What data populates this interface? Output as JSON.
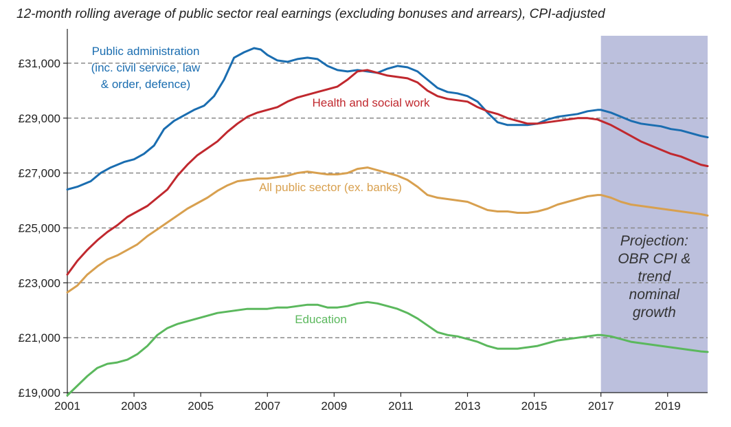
{
  "chart_data": {
    "type": "line",
    "title": "12-month rolling average of public sector real earnings (excluding bonuses and arrears), CPI-adjusted",
    "xlabel": "",
    "ylabel": "",
    "xlim": [
      2001,
      2020.2
    ],
    "ylim": [
      19000,
      32000
    ],
    "x_ticks": [
      2001,
      2003,
      2005,
      2007,
      2009,
      2011,
      2013,
      2015,
      2017,
      2019
    ],
    "x_tick_labels": [
      "2001",
      "2003",
      "2005",
      "2007",
      "2009",
      "2011",
      "2013",
      "2015",
      "2017",
      "2019"
    ],
    "y_ticks": [
      19000,
      21000,
      23000,
      25000,
      27000,
      29000,
      31000
    ],
    "y_tick_labels": [
      "£19,000",
      "£21,000",
      "£23,000",
      "£25,000",
      "£27,000",
      "£29,000",
      "£31,000"
    ],
    "grid": "dashed horizontal",
    "projection": {
      "from": 2017,
      "to": 2020.2,
      "label_lines": [
        "Projection:",
        "OBR CPI &",
        "trend",
        "nominal",
        "growth"
      ],
      "color": "#bcc0dd"
    },
    "series": [
      {
        "name": "Public administration (inc. civil service, law & order, defence)",
        "label_lines": [
          "Public administration",
          "(inc. civil service, law",
          "& order, defence)"
        ],
        "color": "#1a6db0",
        "x": [
          2001,
          2001.3,
          2001.7,
          2002,
          2002.3,
          2002.7,
          2003,
          2003.3,
          2003.6,
          2003.9,
          2004.2,
          2004.5,
          2004.8,
          2005.1,
          2005.4,
          2005.7,
          2006,
          2006.3,
          2006.6,
          2006.8,
          2007,
          2007.3,
          2007.6,
          2007.9,
          2008.2,
          2008.5,
          2008.8,
          2009.1,
          2009.4,
          2009.7,
          2010,
          2010.3,
          2010.6,
          2010.9,
          2011.2,
          2011.5,
          2011.8,
          2012.1,
          2012.4,
          2012.7,
          2013,
          2013.3,
          2013.6,
          2013.9,
          2014.2,
          2014.5,
          2014.8,
          2015.1,
          2015.4,
          2015.7,
          2016,
          2016.3,
          2016.6,
          2016.9,
          2017,
          2017.3,
          2017.6,
          2017.9,
          2018.2,
          2018.5,
          2018.8,
          2019.1,
          2019.4,
          2019.7,
          2020,
          2020.2
        ],
        "values": [
          26400,
          26500,
          26700,
          27000,
          27200,
          27400,
          27500,
          27700,
          28000,
          28600,
          28900,
          29100,
          29300,
          29450,
          29800,
          30400,
          31200,
          31400,
          31550,
          31500,
          31300,
          31100,
          31050,
          31150,
          31200,
          31150,
          30900,
          30750,
          30700,
          30750,
          30700,
          30650,
          30800,
          30900,
          30850,
          30700,
          30400,
          30100,
          29950,
          29900,
          29800,
          29600,
          29200,
          28850,
          28750,
          28750,
          28750,
          28800,
          28950,
          29050,
          29100,
          29150,
          29250,
          29300,
          29300,
          29200,
          29050,
          28900,
          28800,
          28750,
          28700,
          28600,
          28550,
          28450,
          28350,
          28300
        ]
      },
      {
        "name": "Health and social work",
        "label_lines": [
          "Health and social work"
        ],
        "color": "#c0282e",
        "x": [
          2001,
          2001.3,
          2001.6,
          2001.9,
          2002.2,
          2002.5,
          2002.8,
          2003.1,
          2003.4,
          2003.7,
          2004,
          2004.3,
          2004.6,
          2004.9,
          2005.2,
          2005.5,
          2005.8,
          2006.1,
          2006.4,
          2006.7,
          2007,
          2007.3,
          2007.6,
          2007.9,
          2008.2,
          2008.5,
          2008.8,
          2009.1,
          2009.4,
          2009.7,
          2010,
          2010.3,
          2010.6,
          2010.9,
          2011.2,
          2011.5,
          2011.8,
          2012.1,
          2012.4,
          2012.7,
          2013,
          2013.3,
          2013.6,
          2013.9,
          2014.2,
          2014.5,
          2014.8,
          2015.1,
          2015.4,
          2015.7,
          2016,
          2016.3,
          2016.6,
          2016.9,
          2017,
          2017.3,
          2017.6,
          2017.9,
          2018.2,
          2018.5,
          2018.8,
          2019.1,
          2019.4,
          2019.7,
          2020,
          2020.2
        ],
        "values": [
          23300,
          23800,
          24200,
          24550,
          24850,
          25100,
          25400,
          25600,
          25800,
          26100,
          26400,
          26900,
          27300,
          27650,
          27900,
          28150,
          28500,
          28800,
          29050,
          29200,
          29300,
          29400,
          29600,
          29750,
          29850,
          29950,
          30050,
          30150,
          30400,
          30700,
          30750,
          30650,
          30550,
          30500,
          30450,
          30300,
          30000,
          29800,
          29700,
          29650,
          29600,
          29400,
          29250,
          29150,
          29000,
          28900,
          28800,
          28800,
          28850,
          28900,
          28950,
          29000,
          29000,
          28950,
          28900,
          28750,
          28550,
          28350,
          28150,
          28000,
          27850,
          27700,
          27600,
          27450,
          27300,
          27250
        ]
      },
      {
        "name": "All public sector (ex. banks)",
        "label_lines": [
          "All public sector (ex. banks)"
        ],
        "color": "#d8a04f",
        "x": [
          2001,
          2001.3,
          2001.6,
          2001.9,
          2002.2,
          2002.5,
          2002.8,
          2003.1,
          2003.4,
          2003.7,
          2004,
          2004.3,
          2004.6,
          2004.9,
          2005.2,
          2005.5,
          2005.8,
          2006.1,
          2006.4,
          2006.7,
          2007,
          2007.3,
          2007.6,
          2007.9,
          2008.2,
          2008.5,
          2008.8,
          2009.1,
          2009.4,
          2009.7,
          2010,
          2010.3,
          2010.6,
          2010.9,
          2011.2,
          2011.5,
          2011.8,
          2012.1,
          2012.4,
          2012.7,
          2013,
          2013.3,
          2013.6,
          2013.9,
          2014.2,
          2014.5,
          2014.8,
          2015.1,
          2015.4,
          2015.7,
          2016,
          2016.3,
          2016.6,
          2016.9,
          2017,
          2017.3,
          2017.6,
          2017.9,
          2018.2,
          2018.5,
          2018.8,
          2019.1,
          2019.4,
          2019.7,
          2020,
          2020.2
        ],
        "values": [
          22650,
          22900,
          23300,
          23600,
          23850,
          24000,
          24200,
          24400,
          24700,
          24950,
          25200,
          25450,
          25700,
          25900,
          26100,
          26350,
          26550,
          26700,
          26750,
          26800,
          26800,
          26850,
          26900,
          27000,
          27050,
          27000,
          26950,
          26950,
          27000,
          27150,
          27200,
          27100,
          27000,
          26900,
          26750,
          26500,
          26200,
          26100,
          26050,
          26000,
          25950,
          25800,
          25650,
          25600,
          25600,
          25550,
          25550,
          25600,
          25700,
          25850,
          25950,
          26050,
          26150,
          26200,
          26200,
          26100,
          25950,
          25850,
          25800,
          25750,
          25700,
          25650,
          25600,
          25550,
          25500,
          25450
        ]
      },
      {
        "name": "Education",
        "label_lines": [
          "Education"
        ],
        "color": "#5bb85d",
        "x": [
          2001,
          2001.3,
          2001.6,
          2001.9,
          2002.2,
          2002.5,
          2002.8,
          2003.1,
          2003.4,
          2003.7,
          2004,
          2004.3,
          2004.6,
          2004.9,
          2005.2,
          2005.5,
          2005.8,
          2006.1,
          2006.4,
          2006.7,
          2007,
          2007.3,
          2007.6,
          2007.9,
          2008.2,
          2008.5,
          2008.8,
          2009.1,
          2009.4,
          2009.7,
          2010,
          2010.3,
          2010.6,
          2010.9,
          2011.2,
          2011.5,
          2011.8,
          2012.1,
          2012.4,
          2012.7,
          2013,
          2013.3,
          2013.6,
          2013.9,
          2014.2,
          2014.5,
          2014.8,
          2015.1,
          2015.4,
          2015.7,
          2016,
          2016.3,
          2016.6,
          2016.9,
          2017,
          2017.3,
          2017.6,
          2017.9,
          2018.2,
          2018.5,
          2018.8,
          2019.1,
          2019.4,
          2019.7,
          2020,
          2020.2
        ],
        "values": [
          18900,
          19250,
          19600,
          19900,
          20050,
          20100,
          20200,
          20400,
          20700,
          21100,
          21350,
          21500,
          21600,
          21700,
          21800,
          21900,
          21950,
          22000,
          22050,
          22050,
          22050,
          22100,
          22100,
          22150,
          22200,
          22200,
          22100,
          22100,
          22150,
          22250,
          22300,
          22250,
          22150,
          22050,
          21900,
          21700,
          21450,
          21200,
          21100,
          21050,
          20950,
          20850,
          20700,
          20600,
          20600,
          20600,
          20650,
          20700,
          20800,
          20900,
          20950,
          21000,
          21050,
          21100,
          21100,
          21050,
          20950,
          20850,
          20800,
          20750,
          20700,
          20650,
          20600,
          20550,
          20500,
          20480
        ]
      }
    ]
  }
}
